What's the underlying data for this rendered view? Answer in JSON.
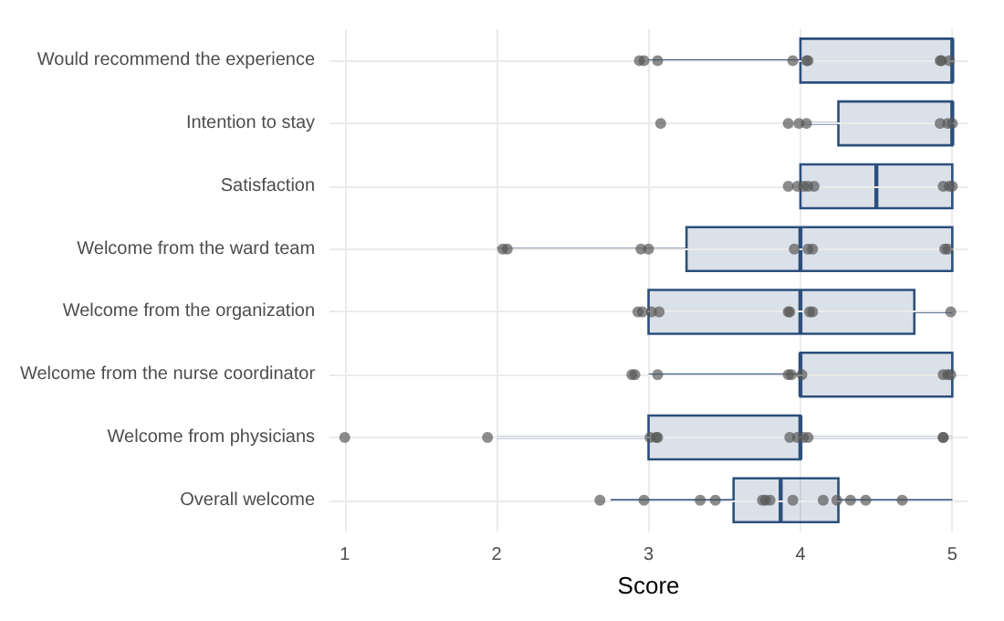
{
  "chart_data": {
    "type": "box",
    "orientation": "horizontal",
    "xlabel": "Score",
    "categories": [
      "Would recommend the experience",
      "Intention to stay",
      "Satisfaction",
      "Welcome from the ward team",
      "Welcome from the organization",
      "Welcome from the nurse coordinator",
      "Welcome from physicians",
      "Overall welcome"
    ],
    "series": [
      {
        "type": "box",
        "color": "#2c4f7c",
        "boxes": [
          {
            "low": 3,
            "q1": 4,
            "median": 5,
            "q3": 5,
            "high": 5
          },
          {
            "low": 4,
            "q1": 4.25,
            "median": 5,
            "q3": 5,
            "high": 5
          },
          {
            "low": 4,
            "q1": 4,
            "median": 4.5,
            "q3": 5,
            "high": 5
          },
          {
            "low": 2,
            "q1": 3.25,
            "median": 4,
            "q3": 5,
            "high": 5
          },
          {
            "low": 3,
            "q1": 3,
            "median": 4,
            "q3": 4.75,
            "high": 5
          },
          {
            "low": 3,
            "q1": 4,
            "median": 4,
            "q3": 5,
            "high": 5
          },
          {
            "low": 2,
            "q1": 3,
            "median": 4,
            "q3": 4,
            "high": 5
          },
          {
            "low": 2.75,
            "q1": 3.56,
            "median": 3.87,
            "q3": 4.25,
            "high": 5
          }
        ]
      },
      {
        "type": "scatter",
        "color": "#555555",
        "x": [
          "Would recommend the experience",
          "Would recommend the experience",
          "Would recommend the experience",
          "Would recommend the experience",
          "Would recommend the experience",
          "Would recommend the experience",
          "Would recommend the experience",
          "Would recommend the experience",
          "Would recommend the experience",
          "Intention to stay",
          "Intention to stay",
          "Intention to stay",
          "Intention to stay",
          "Intention to stay",
          "Intention to stay",
          "Intention to stay",
          "Satisfaction",
          "Satisfaction",
          "Satisfaction",
          "Satisfaction",
          "Satisfaction",
          "Satisfaction",
          "Satisfaction",
          "Satisfaction",
          "Welcome from the ward team",
          "Welcome from the ward team",
          "Welcome from the ward team",
          "Welcome from the ward team",
          "Welcome from the ward team",
          "Welcome from the ward team",
          "Welcome from the ward team",
          "Welcome from the ward team",
          "Welcome from the ward team",
          "Welcome from the organization",
          "Welcome from the organization",
          "Welcome from the organization",
          "Welcome from the organization",
          "Welcome from the organization",
          "Welcome from the organization",
          "Welcome from the organization",
          "Welcome from the organization",
          "Welcome from the organization",
          "Welcome from the nurse coordinator",
          "Welcome from the nurse coordinator",
          "Welcome from the nurse coordinator",
          "Welcome from the nurse coordinator",
          "Welcome from the nurse coordinator",
          "Welcome from the nurse coordinator",
          "Welcome from the nurse coordinator",
          "Welcome from the nurse coordinator",
          "Welcome from the nurse coordinator",
          "Welcome from physicians",
          "Welcome from physicians",
          "Welcome from physicians",
          "Welcome from physicians",
          "Welcome from physicians",
          "Welcome from physicians",
          "Welcome from physicians",
          "Welcome from physicians",
          "Welcome from physicians",
          "Welcome from physicians",
          "Welcome from physicians",
          "Overall welcome",
          "Overall welcome",
          "Overall welcome",
          "Overall welcome",
          "Overall welcome",
          "Overall welcome",
          "Overall welcome",
          "Overall welcome",
          "Overall welcome",
          "Overall welcome",
          "Overall welcome",
          "Overall welcome",
          "Overall welcome"
        ],
        "values": [
          2.94,
          2.97,
          3.06,
          3.95,
          4.04,
          4.05,
          4.92,
          4.93,
          4.98,
          3.08,
          3.92,
          3.99,
          4.04,
          4.92,
          4.97,
          5,
          3.92,
          3.98,
          4.02,
          4.05,
          4.09,
          4.94,
          4.98,
          5,
          2.04,
          2.07,
          2.95,
          3,
          3.96,
          4.05,
          4.08,
          4.95,
          4.97,
          2.93,
          2.96,
          3.02,
          3.07,
          3.92,
          3.93,
          4.06,
          4.08,
          4.99,
          2.89,
          2.91,
          3.06,
          3.92,
          3.94,
          4.01,
          4.94,
          4.97,
          4.99,
          1,
          1.94,
          3.01,
          3.05,
          3.06,
          3.93,
          3.98,
          4.02,
          4.05,
          4.94,
          4.94,
          2.68,
          2.97,
          3.34,
          3.44,
          3.75,
          3.77,
          3.8,
          3.95,
          4.15,
          4.24,
          4.33,
          4.43,
          4.67
        ]
      }
    ],
    "xlim": [
      0.9,
      5.1
    ],
    "xticks": [
      1,
      2,
      3,
      4,
      5
    ],
    "grid": true,
    "marker": "circle"
  }
}
